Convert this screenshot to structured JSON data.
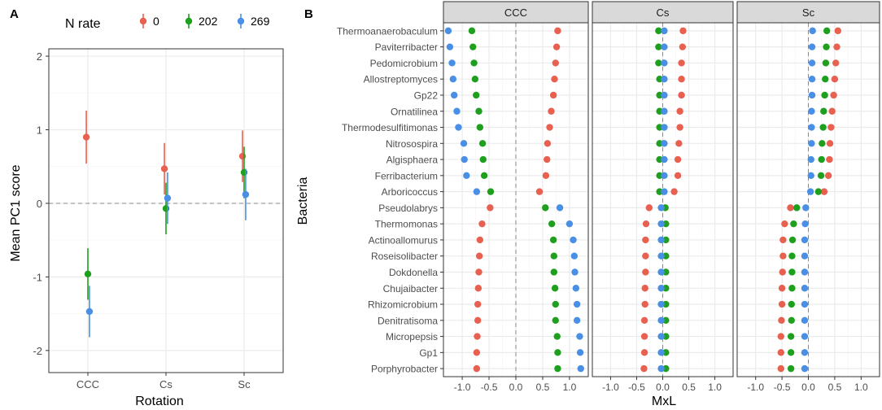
{
  "panel_a": {
    "letter": "A",
    "legend_title": "N rate",
    "legend": [
      {
        "label": "0",
        "color": "#E8604F"
      },
      {
        "label": "202",
        "color": "#1EA01E"
      },
      {
        "label": "269",
        "color": "#4A8FE6"
      }
    ]
  },
  "panel_b": {
    "letter": "B",
    "facet_labels": [
      "CCC",
      "Cs",
      "Sc"
    ]
  },
  "chart_data": [
    {
      "type": "scatter",
      "subtype": "pointrange",
      "xlabel": "Rotation",
      "ylabel": "Mean PC1 score",
      "categories": [
        "CCC",
        "Cs",
        "Sc"
      ],
      "ylim": [
        -2.3,
        2.1
      ],
      "yticks": [
        2,
        1,
        0,
        -1,
        -2
      ],
      "ytick_labels": [
        "2",
        "1",
        "0",
        "-1",
        "-2"
      ],
      "hline": 0,
      "series": [
        {
          "name": "0",
          "color": "#E8604F",
          "offset": -0.02,
          "values": [
            0.9,
            0.47,
            0.64
          ],
          "lower": [
            0.54,
            0.12,
            0.29
          ],
          "upper": [
            1.26,
            0.82,
            0.99
          ]
        },
        {
          "name": "202",
          "color": "#1EA01E",
          "offset": 0,
          "values": [
            -0.96,
            -0.07,
            0.42
          ],
          "lower": [
            -1.31,
            -0.42,
            0.07
          ],
          "upper": [
            -0.61,
            0.28,
            0.77
          ]
        },
        {
          "name": "269",
          "color": "#4A8FE6",
          "offset": 0.02,
          "values": [
            -1.47,
            0.07,
            0.12
          ],
          "lower": [
            -1.82,
            -0.28,
            -0.23
          ],
          "upper": [
            -1.12,
            0.42,
            0.47
          ]
        }
      ]
    },
    {
      "type": "scatter",
      "subtype": "faceted-dotplot",
      "xlabel": "MxL",
      "ylabel": "Bacteria",
      "xlim": [
        -1.35,
        1.35
      ],
      "xticks": [
        -1.0,
        -0.5,
        0.0,
        0.5,
        1.0
      ],
      "xtick_labels": [
        "-1.0",
        "-0.5",
        "0.0",
        "0.5",
        "1.0"
      ],
      "vline": 0,
      "bacteria": [
        "Thermoanaerobaculum",
        "Paviterribacter",
        "Pedomicrobium",
        "Allostreptomyces",
        "Gp22",
        "Ornatilinea",
        "Thermodesulfitimonas",
        "Nitrosospira",
        "Algisphaera",
        "Ferribacterium",
        "Arboricoccus",
        "Pseudolabrys",
        "Thermomonas",
        "Actinoallomurus",
        "Roseisolibacter",
        "Dokdonella",
        "Chujaibacter",
        "Rhizomicrobium",
        "Denitratisoma",
        "Micropepsis",
        "Gp1",
        "Porphyrobacter"
      ],
      "facets": [
        {
          "label": "CCC",
          "series": [
            {
              "name": "0",
              "values": [
                0.78,
                0.76,
                0.74,
                0.72,
                0.7,
                0.66,
                0.63,
                0.59,
                0.58,
                0.56,
                0.44,
                -0.48,
                -0.63,
                -0.67,
                -0.68,
                -0.69,
                -0.7,
                -0.71,
                -0.71,
                -0.72,
                -0.73,
                -0.73
              ]
            },
            {
              "name": "202",
              "values": [
                -0.82,
                -0.8,
                -0.78,
                -0.76,
                -0.74,
                -0.69,
                -0.67,
                -0.62,
                -0.61,
                -0.59,
                -0.47,
                0.55,
                0.67,
                0.7,
                0.71,
                0.71,
                0.73,
                0.74,
                0.74,
                0.77,
                0.78,
                0.78
              ]
            },
            {
              "name": "269",
              "values": [
                -1.26,
                -1.23,
                -1.19,
                -1.17,
                -1.15,
                -1.1,
                -1.07,
                -0.97,
                -0.96,
                -0.92,
                -0.73,
                0.82,
                1.0,
                1.07,
                1.09,
                1.1,
                1.12,
                1.14,
                1.14,
                1.19,
                1.2,
                1.21
              ]
            }
          ]
        },
        {
          "label": "Cs",
          "series": [
            {
              "name": "0",
              "values": [
                0.39,
                0.38,
                0.36,
                0.36,
                0.36,
                0.33,
                0.33,
                0.31,
                0.29,
                0.29,
                0.22,
                -0.26,
                -0.32,
                -0.33,
                -0.33,
                -0.33,
                -0.34,
                -0.34,
                -0.35,
                -0.35,
                -0.35,
                -0.36
              ]
            },
            {
              "name": "202",
              "values": [
                -0.08,
                -0.08,
                -0.08,
                -0.06,
                -0.06,
                -0.06,
                -0.06,
                -0.06,
                -0.06,
                -0.06,
                -0.06,
                0.05,
                0.06,
                0.06,
                0.06,
                0.06,
                0.06,
                0.06,
                0.06,
                0.06,
                0.06,
                0.06
              ]
            },
            {
              "name": "269",
              "values": [
                0.03,
                0.03,
                0.03,
                0.03,
                0.03,
                0.03,
                0.03,
                0.03,
                0.03,
                0.03,
                0.03,
                -0.03,
                -0.03,
                -0.03,
                -0.03,
                -0.03,
                -0.03,
                -0.03,
                -0.03,
                -0.03,
                -0.03,
                -0.03
              ]
            }
          ]
        },
        {
          "label": "Sc",
          "series": [
            {
              "name": "0",
              "values": [
                0.56,
                0.54,
                0.52,
                0.5,
                0.48,
                0.45,
                0.43,
                0.41,
                0.4,
                0.38,
                0.3,
                -0.34,
                -0.45,
                -0.48,
                -0.48,
                -0.49,
                -0.5,
                -0.5,
                -0.51,
                -0.52,
                -0.52,
                -0.52
              ]
            },
            {
              "name": "202",
              "values": [
                0.35,
                0.34,
                0.33,
                0.32,
                0.31,
                0.29,
                0.28,
                0.26,
                0.25,
                0.24,
                0.19,
                -0.22,
                -0.28,
                -0.3,
                -0.31,
                -0.31,
                -0.31,
                -0.32,
                -0.32,
                -0.33,
                -0.33,
                -0.33
              ]
            },
            {
              "name": "269",
              "values": [
                0.08,
                0.07,
                0.07,
                0.07,
                0.07,
                0.06,
                0.06,
                0.06,
                0.05,
                0.05,
                0.04,
                -0.05,
                -0.06,
                -0.07,
                -0.07,
                -0.07,
                -0.07,
                -0.07,
                -0.07,
                -0.07,
                -0.07,
                -0.07
              ]
            }
          ]
        }
      ]
    }
  ]
}
